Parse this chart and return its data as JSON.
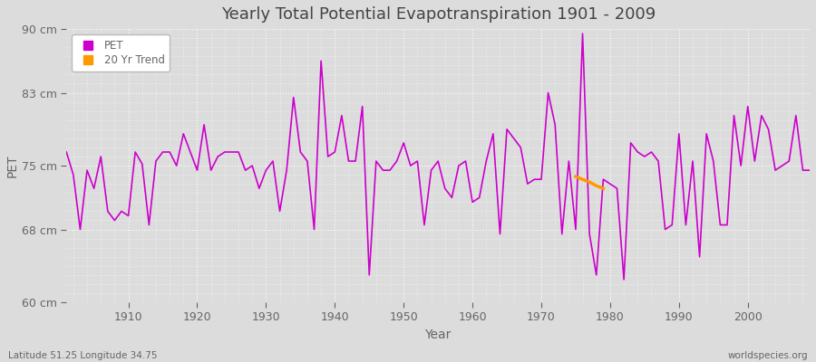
{
  "title": "Yearly Total Potential Evapotranspiration 1901 - 2009",
  "xlabel": "Year",
  "ylabel": "PET",
  "bottom_left_label": "Latitude 51.25 Longitude 34.75",
  "bottom_right_label": "worldspecies.org",
  "ylim": [
    60,
    90
  ],
  "xlim": [
    1901,
    2009
  ],
  "yticks": [
    60,
    68,
    75,
    83,
    90
  ],
  "ytick_labels": [
    "60 cm",
    "68 cm",
    "75 cm",
    "83 cm",
    "90 cm"
  ],
  "xticks": [
    1910,
    1920,
    1930,
    1940,
    1950,
    1960,
    1970,
    1980,
    1990,
    2000
  ],
  "background_color": "#dcdcdc",
  "plot_bg_color": "#dcdcdc",
  "grid_color": "#ffffff",
  "line_color": "#cc00cc",
  "trend_color": "#ff9900",
  "title_color": "#444444",
  "label_color": "#666666",
  "pet_data": {
    "1901": 76.5,
    "1902": 74.0,
    "1903": 68.0,
    "1904": 74.5,
    "1905": 72.5,
    "1906": 76.0,
    "1907": 70.0,
    "1908": 69.0,
    "1909": 70.0,
    "1910": 69.5,
    "1911": 76.5,
    "1912": 75.2,
    "1913": 68.5,
    "1914": 75.5,
    "1915": 76.5,
    "1916": 76.5,
    "1917": 75.0,
    "1918": 78.5,
    "1919": 76.5,
    "1920": 74.5,
    "1921": 79.5,
    "1922": 74.5,
    "1923": 76.0,
    "1924": 76.5,
    "1925": 76.5,
    "1926": 76.5,
    "1927": 74.5,
    "1928": 75.0,
    "1929": 72.5,
    "1930": 74.5,
    "1931": 75.5,
    "1932": 70.0,
    "1933": 74.5,
    "1934": 82.5,
    "1935": 76.5,
    "1936": 75.5,
    "1937": 68.0,
    "1938": 86.5,
    "1939": 76.0,
    "1940": 76.5,
    "1941": 80.5,
    "1942": 75.5,
    "1943": 75.5,
    "1944": 81.5,
    "1945": 63.0,
    "1946": 75.5,
    "1947": 74.5,
    "1948": 74.5,
    "1949": 75.5,
    "1950": 77.5,
    "1951": 75.0,
    "1952": 75.5,
    "1953": 68.5,
    "1954": 74.5,
    "1955": 75.5,
    "1956": 72.5,
    "1957": 71.5,
    "1958": 75.0,
    "1959": 75.5,
    "1960": 71.0,
    "1961": 71.5,
    "1962": 75.5,
    "1963": 78.5,
    "1964": 67.5,
    "1965": 79.0,
    "1966": 78.0,
    "1967": 77.0,
    "1968": 73.0,
    "1969": 73.5,
    "1970": 73.5,
    "1971": 83.0,
    "1972": 79.5,
    "1973": 67.5,
    "1974": 75.5,
    "1975": 68.0,
    "1976": 89.5,
    "1977": 67.5,
    "1978": 63.0,
    "1979": 73.5,
    "1980": 73.0,
    "1981": 72.5,
    "1982": 62.5,
    "1983": 77.5,
    "1984": 76.5,
    "1985": 76.0,
    "1986": 76.5,
    "1987": 75.5,
    "1988": 68.0,
    "1989": 68.5,
    "1990": 78.5,
    "1991": 68.5,
    "1992": 75.5,
    "1993": 65.0,
    "1994": 78.5,
    "1995": 75.5,
    "1996": 68.5,
    "1997": 68.5,
    "1998": 80.5,
    "1999": 75.0,
    "2000": 81.5,
    "2001": 75.5,
    "2002": 80.5,
    "2003": 79.0,
    "2004": 74.5,
    "2005": 75.0,
    "2006": 75.5,
    "2007": 80.5,
    "2008": 74.5,
    "2009": 74.5
  },
  "trend_data": {
    "1975": 73.8,
    "1976": 73.5,
    "1977": 73.2,
    "1978": 72.8,
    "1979": 72.5
  },
  "legend_pet_label": "PET",
  "legend_trend_label": "20 Yr Trend"
}
